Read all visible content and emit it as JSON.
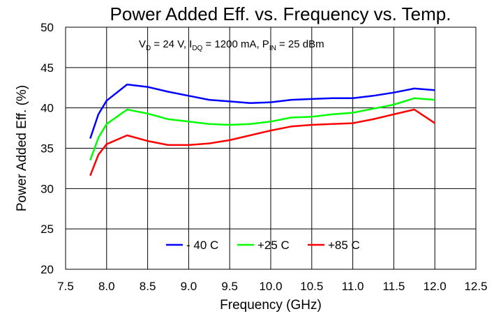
{
  "chart_data": {
    "type": "line",
    "title": "Power Added Eff. vs. Frequency vs. Temp.",
    "xlabel": "Frequency (GHz)",
    "ylabel": "Power Added Eff. (%)",
    "xlim": [
      7.5,
      12.5
    ],
    "ylim": [
      20,
      50
    ],
    "xticks": [
      "7.5",
      "8.0",
      "8.5",
      "9.0",
      "9.5",
      "10.0",
      "10.5",
      "11.0",
      "11.5",
      "12.0",
      "12.5"
    ],
    "yticks": [
      "20",
      "25",
      "30",
      "35",
      "40",
      "45",
      "50"
    ],
    "grid": true,
    "legend_position": "bottom-center",
    "annotation": {
      "vd": "V",
      "vd_sub": "D",
      "vd_rest": " = 24 V, I",
      "idq_sub": "DQ",
      "idq_rest": " = 1200 mA, P",
      "pin_sub": "IN",
      "pin_rest": " = 25 dBm"
    },
    "series": [
      {
        "name": "- 40 C",
        "color": "#0000ff",
        "x": [
          7.8,
          7.9,
          8.0,
          8.25,
          8.5,
          8.75,
          9.0,
          9.25,
          9.5,
          9.75,
          10.0,
          10.25,
          10.5,
          10.75,
          11.0,
          11.25,
          11.5,
          11.75,
          12.0
        ],
        "values": [
          36.2,
          39.2,
          40.9,
          42.9,
          42.6,
          42.0,
          41.5,
          41.0,
          40.8,
          40.6,
          40.7,
          41.0,
          41.1,
          41.2,
          41.2,
          41.5,
          41.9,
          42.4,
          42.2
        ]
      },
      {
        "name": "+25 C",
        "color": "#00ff00",
        "x": [
          7.8,
          7.9,
          8.0,
          8.25,
          8.5,
          8.75,
          9.0,
          9.25,
          9.5,
          9.75,
          10.0,
          10.25,
          10.5,
          10.75,
          11.0,
          11.25,
          11.5,
          11.75,
          12.0
        ],
        "values": [
          33.5,
          36.3,
          38.0,
          39.8,
          39.3,
          38.6,
          38.3,
          38.0,
          37.9,
          38.0,
          38.3,
          38.8,
          38.9,
          39.2,
          39.4,
          39.9,
          40.4,
          41.2,
          41.0
        ]
      },
      {
        "name": "+85 C",
        "color": "#ff0000",
        "x": [
          7.8,
          7.9,
          8.0,
          8.25,
          8.5,
          8.75,
          9.0,
          9.25,
          9.5,
          9.75,
          10.0,
          10.25,
          10.5,
          10.75,
          11.0,
          11.25,
          11.5,
          11.75,
          12.0
        ],
        "values": [
          31.6,
          34.2,
          35.5,
          36.6,
          35.9,
          35.4,
          35.4,
          35.6,
          36.0,
          36.6,
          37.2,
          37.7,
          37.9,
          38.0,
          38.1,
          38.6,
          39.2,
          39.8,
          38.1
        ]
      }
    ]
  }
}
